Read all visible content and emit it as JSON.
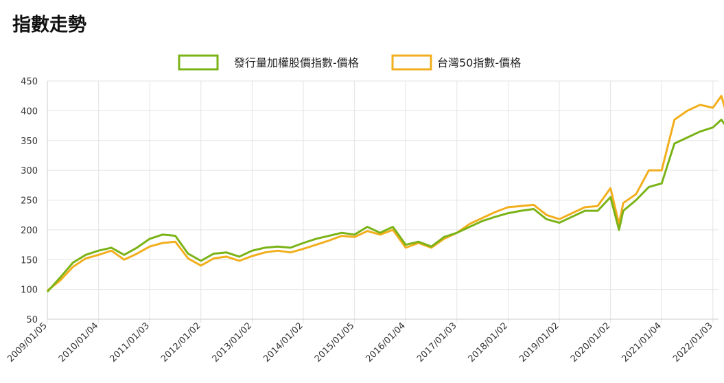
{
  "page": {
    "title": "指數走勢"
  },
  "chart_data": {
    "type": "line",
    "title": "",
    "xlabel": "",
    "ylabel": "",
    "ylim": [
      50,
      450
    ],
    "yticks": [
      50,
      100,
      150,
      200,
      250,
      300,
      350,
      400,
      450
    ],
    "grid": true,
    "legend_position": "top-center",
    "x_tick_labels": [
      "2009/01/05",
      "2010/01/04",
      "2011/01/03",
      "2012/01/02",
      "2013/01/02",
      "2014/01/02",
      "2015/01/05",
      "2016/01/04",
      "2017/01/03",
      "2018/01/02",
      "2019/01/02",
      "2020/01/02",
      "2021/01/04",
      "2022/01/03"
    ],
    "x": [
      "2009/01",
      "2009/04",
      "2009/07",
      "2009/10",
      "2010/01",
      "2010/04",
      "2010/07",
      "2010/10",
      "2011/01",
      "2011/04",
      "2011/07",
      "2011/10",
      "2012/01",
      "2012/04",
      "2012/07",
      "2012/10",
      "2013/01",
      "2013/04",
      "2013/07",
      "2013/10",
      "2014/01",
      "2014/04",
      "2014/07",
      "2014/10",
      "2015/01",
      "2015/04",
      "2015/07",
      "2015/10",
      "2016/01",
      "2016/04",
      "2016/07",
      "2016/10",
      "2017/01",
      "2017/04",
      "2017/07",
      "2017/10",
      "2018/01",
      "2018/04",
      "2018/07",
      "2018/10",
      "2019/01",
      "2019/04",
      "2019/07",
      "2019/10",
      "2020/01",
      "2020/03",
      "2020/04",
      "2020/07",
      "2020/10",
      "2021/01",
      "2021/04",
      "2021/07",
      "2021/10",
      "2022/01",
      "2022/03",
      "2022/04"
    ],
    "series": [
      {
        "name": "發行量加權股價指數-價格",
        "color": "#7ab317",
        "values": [
          96,
          120,
          145,
          158,
          165,
          170,
          158,
          170,
          185,
          192,
          190,
          160,
          148,
          160,
          162,
          155,
          165,
          170,
          172,
          170,
          178,
          185,
          190,
          195,
          192,
          205,
          195,
          205,
          175,
          180,
          172,
          188,
          195,
          205,
          215,
          222,
          228,
          232,
          235,
          218,
          212,
          222,
          232,
          232,
          255,
          200,
          232,
          250,
          272,
          278,
          345,
          355,
          365,
          372,
          385,
          375
        ]
      },
      {
        "name": "台灣50指數-價格",
        "color": "#f2ae1c",
        "values": [
          98,
          115,
          138,
          152,
          158,
          165,
          150,
          160,
          172,
          178,
          180,
          152,
          140,
          152,
          155,
          148,
          156,
          162,
          165,
          162,
          168,
          175,
          182,
          190,
          188,
          198,
          192,
          200,
          170,
          178,
          170,
          185,
          195,
          210,
          220,
          230,
          238,
          240,
          242,
          225,
          218,
          228,
          238,
          240,
          270,
          210,
          245,
          260,
          300,
          300,
          385,
          400,
          410,
          405,
          425,
          400
        ]
      }
    ]
  }
}
